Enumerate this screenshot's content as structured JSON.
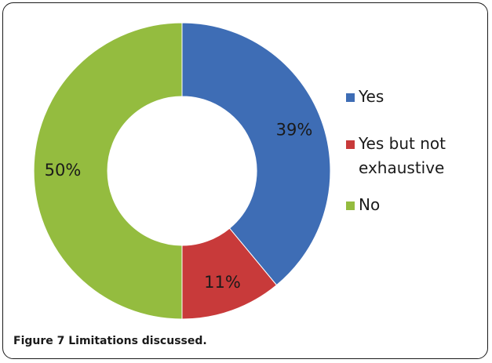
{
  "chart_data": {
    "type": "pie",
    "donut": true,
    "categories": [
      "Yes",
      "Yes but not exhaustive",
      "No"
    ],
    "values": [
      39,
      11,
      50
    ],
    "labels": [
      "39%",
      "11%",
      "50%"
    ],
    "colors": [
      "#3E6DB5",
      "#C83A3A",
      "#94BC3F"
    ],
    "legend_position": "right"
  },
  "legend": {
    "items": [
      {
        "label": "Yes",
        "color": "#3E6DB5"
      },
      {
        "label": "Yes but not exhaustive",
        "color": "#C83A3A"
      },
      {
        "label": "No",
        "color": "#94BC3F"
      }
    ]
  },
  "caption": {
    "prefix": "Figure 7",
    "text": "Limitations discussed."
  }
}
